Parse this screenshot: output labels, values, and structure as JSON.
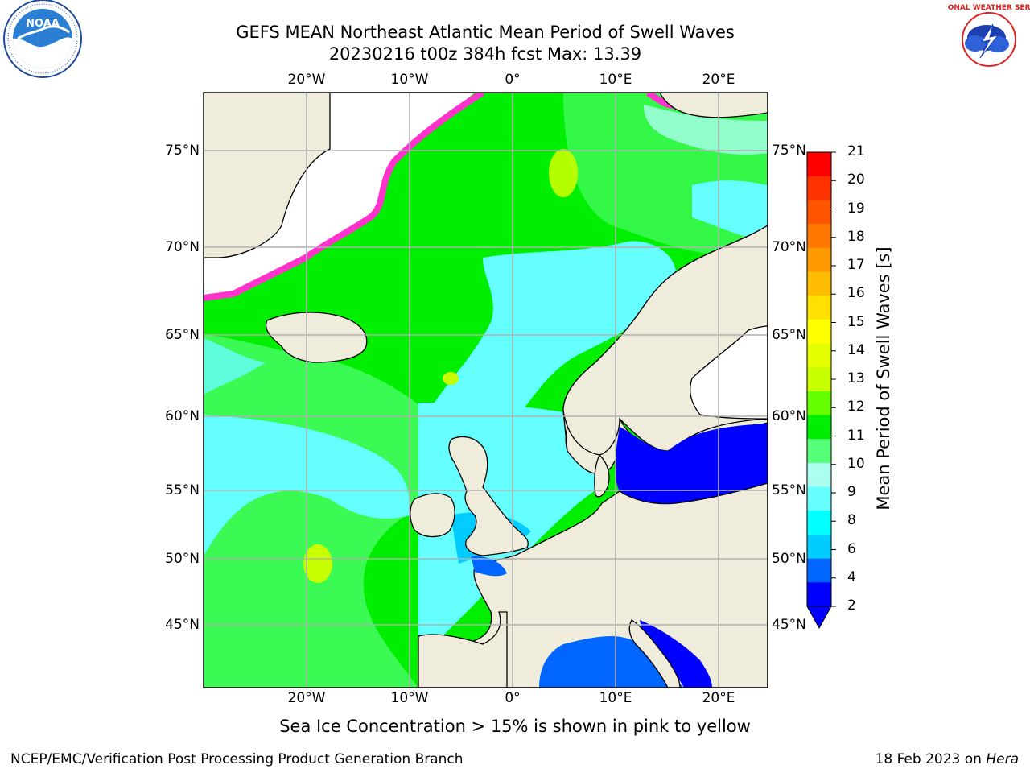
{
  "title": {
    "line1": "GEFS MEAN Northeast Atlantic Mean Period of Swell Waves",
    "line2": "20230216 t00z 384h fcst   Max: 13.39"
  },
  "logos": {
    "noaa_text": "NOAA",
    "nws_text": "NATIONAL WEATHER SERVICE"
  },
  "axes": {
    "lon_labels": [
      "20°W",
      "10°W",
      "0°",
      "10°E",
      "20°E"
    ],
    "lat_labels": [
      "75°N",
      "70°N",
      "65°N",
      "60°N",
      "55°N",
      "50°N",
      "45°N"
    ]
  },
  "colorbar": {
    "label": "Mean Period of Swell Waves [s]",
    "ticks": [
      "21",
      "20",
      "19",
      "18",
      "17",
      "16",
      "15",
      "14",
      "13",
      "12",
      "11",
      "10",
      "9",
      "8",
      "6",
      "4",
      "2"
    ],
    "colors": [
      "#ff0000",
      "#ff3300",
      "#ff5500",
      "#ff7700",
      "#ff9900",
      "#ffbb00",
      "#ffe000",
      "#ffff00",
      "#e6ff00",
      "#c8ff00",
      "#66ff00",
      "#00ee00",
      "#55ff77",
      "#aaffee",
      "#66ffff",
      "#00ffff",
      "#00ccff",
      "#0066ff",
      "#0000ff"
    ]
  },
  "footnote": "Sea Ice Concentration > 15% is shown in pink to yellow",
  "credit": {
    "left": "NCEP/EMC/Verification Post Processing Product Generation Branch",
    "right_prefix": "18 Feb 2023 on ",
    "right_host": "Hera"
  }
}
